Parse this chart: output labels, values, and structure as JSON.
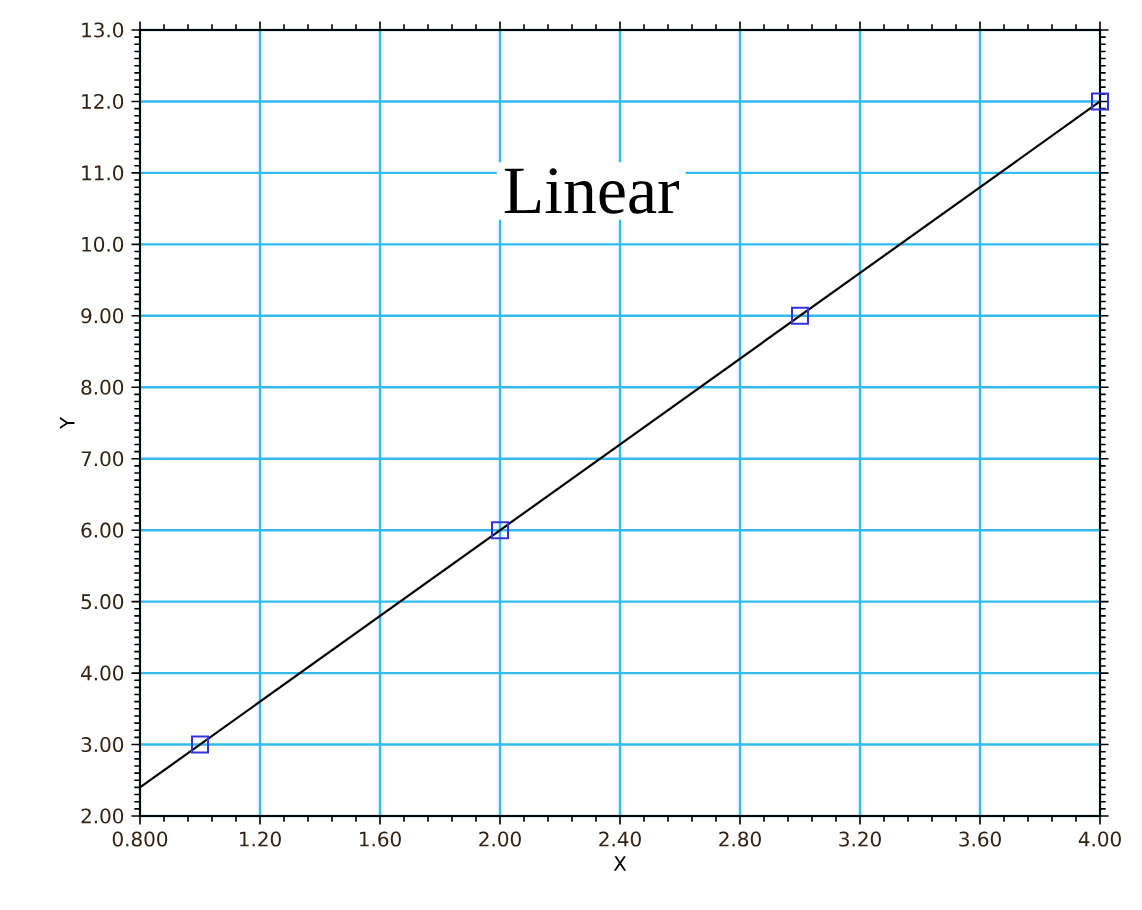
{
  "chart_data": {
    "type": "scatter",
    "title": "Linear",
    "xlabel": "X",
    "ylabel": "Y",
    "xlim": [
      0.8,
      4.0
    ],
    "ylim": [
      2.0,
      13.0
    ],
    "xticks": [
      {
        "value": 0.8,
        "label": "0.800"
      },
      {
        "value": 1.2,
        "label": "1.20"
      },
      {
        "value": 1.6,
        "label": "1.60"
      },
      {
        "value": 2.0,
        "label": "2.00"
      },
      {
        "value": 2.4,
        "label": "2.40"
      },
      {
        "value": 2.8,
        "label": "2.80"
      },
      {
        "value": 3.2,
        "label": "3.20"
      },
      {
        "value": 3.6,
        "label": "3.60"
      },
      {
        "value": 4.0,
        "label": "4.00"
      }
    ],
    "yticks": [
      {
        "value": 2,
        "label": "2.00"
      },
      {
        "value": 3,
        "label": "3.00"
      },
      {
        "value": 4,
        "label": "4.00"
      },
      {
        "value": 5,
        "label": "5.00"
      },
      {
        "value": 6,
        "label": "6.00"
      },
      {
        "value": 7,
        "label": "7.00"
      },
      {
        "value": 8,
        "label": "8.00"
      },
      {
        "value": 9,
        "label": "9.00"
      },
      {
        "value": 10,
        "label": "10.0"
      },
      {
        "value": 11,
        "label": "11.0"
      },
      {
        "value": 12,
        "label": "12.0"
      },
      {
        "value": 13,
        "label": "13.0"
      }
    ],
    "grid": true,
    "series": [
      {
        "type": "line",
        "color": "#000000",
        "marker": "none",
        "x": [
          0.8,
          4.0
        ],
        "values": [
          2.4,
          12.0
        ]
      },
      {
        "color": "#3333dd",
        "marker": "square",
        "x": [
          1.0,
          2.0,
          3.0,
          4.0
        ],
        "values": [
          3.0,
          6.0,
          9.0,
          12.0
        ]
      }
    ]
  }
}
